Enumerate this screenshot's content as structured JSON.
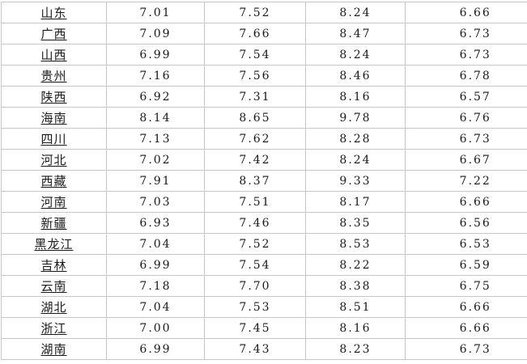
{
  "colors": {
    "background": "#ffffff",
    "grid_line": "#c6c6c6",
    "text": "#1a1a1a",
    "province_link_text": "#1a1a1a"
  },
  "chart_data": {
    "type": "table",
    "categories": [
      "山东",
      "广西",
      "山西",
      "贵州",
      "陕西",
      "海南",
      "四川",
      "河北",
      "西藏",
      "河南",
      "新疆",
      "黑龙江",
      "吉林",
      "云南",
      "湖北",
      "浙江",
      "湖南"
    ],
    "series": [
      {
        "name": "",
        "values": [
          "7.01",
          "7.09",
          "6.99",
          "7.16",
          "6.92",
          "8.14",
          "7.13",
          "7.02",
          "7.91",
          "7.03",
          "6.93",
          "7.04",
          "6.99",
          "7.18",
          "7.04",
          "7.00",
          "6.99"
        ]
      },
      {
        "name": "",
        "values": [
          "7.52",
          "7.66",
          "7.54",
          "7.56",
          "7.31",
          "8.65",
          "7.62",
          "7.42",
          "8.37",
          "7.51",
          "7.46",
          "7.52",
          "7.54",
          "7.70",
          "7.53",
          "7.45",
          "7.43"
        ]
      },
      {
        "name": "",
        "values": [
          "8.24",
          "8.47",
          "8.24",
          "8.46",
          "8.16",
          "9.78",
          "8.28",
          "8.24",
          "9.33",
          "8.17",
          "8.35",
          "8.53",
          "8.22",
          "8.38",
          "8.51",
          "8.16",
          "8.23"
        ]
      },
      {
        "name": "",
        "values": [
          "6.66",
          "6.73",
          "6.73",
          "6.78",
          "6.57",
          "6.76",
          "6.73",
          "6.67",
          "7.22",
          "6.66",
          "6.56",
          "6.53",
          "6.59",
          "6.75",
          "6.66",
          "6.66",
          "6.73"
        ]
      }
    ],
    "layout": {
      "grid": "on",
      "header_row_visible": false,
      "first_column_style": "underlined-link",
      "row_count": 17,
      "column_count": 5
    }
  }
}
